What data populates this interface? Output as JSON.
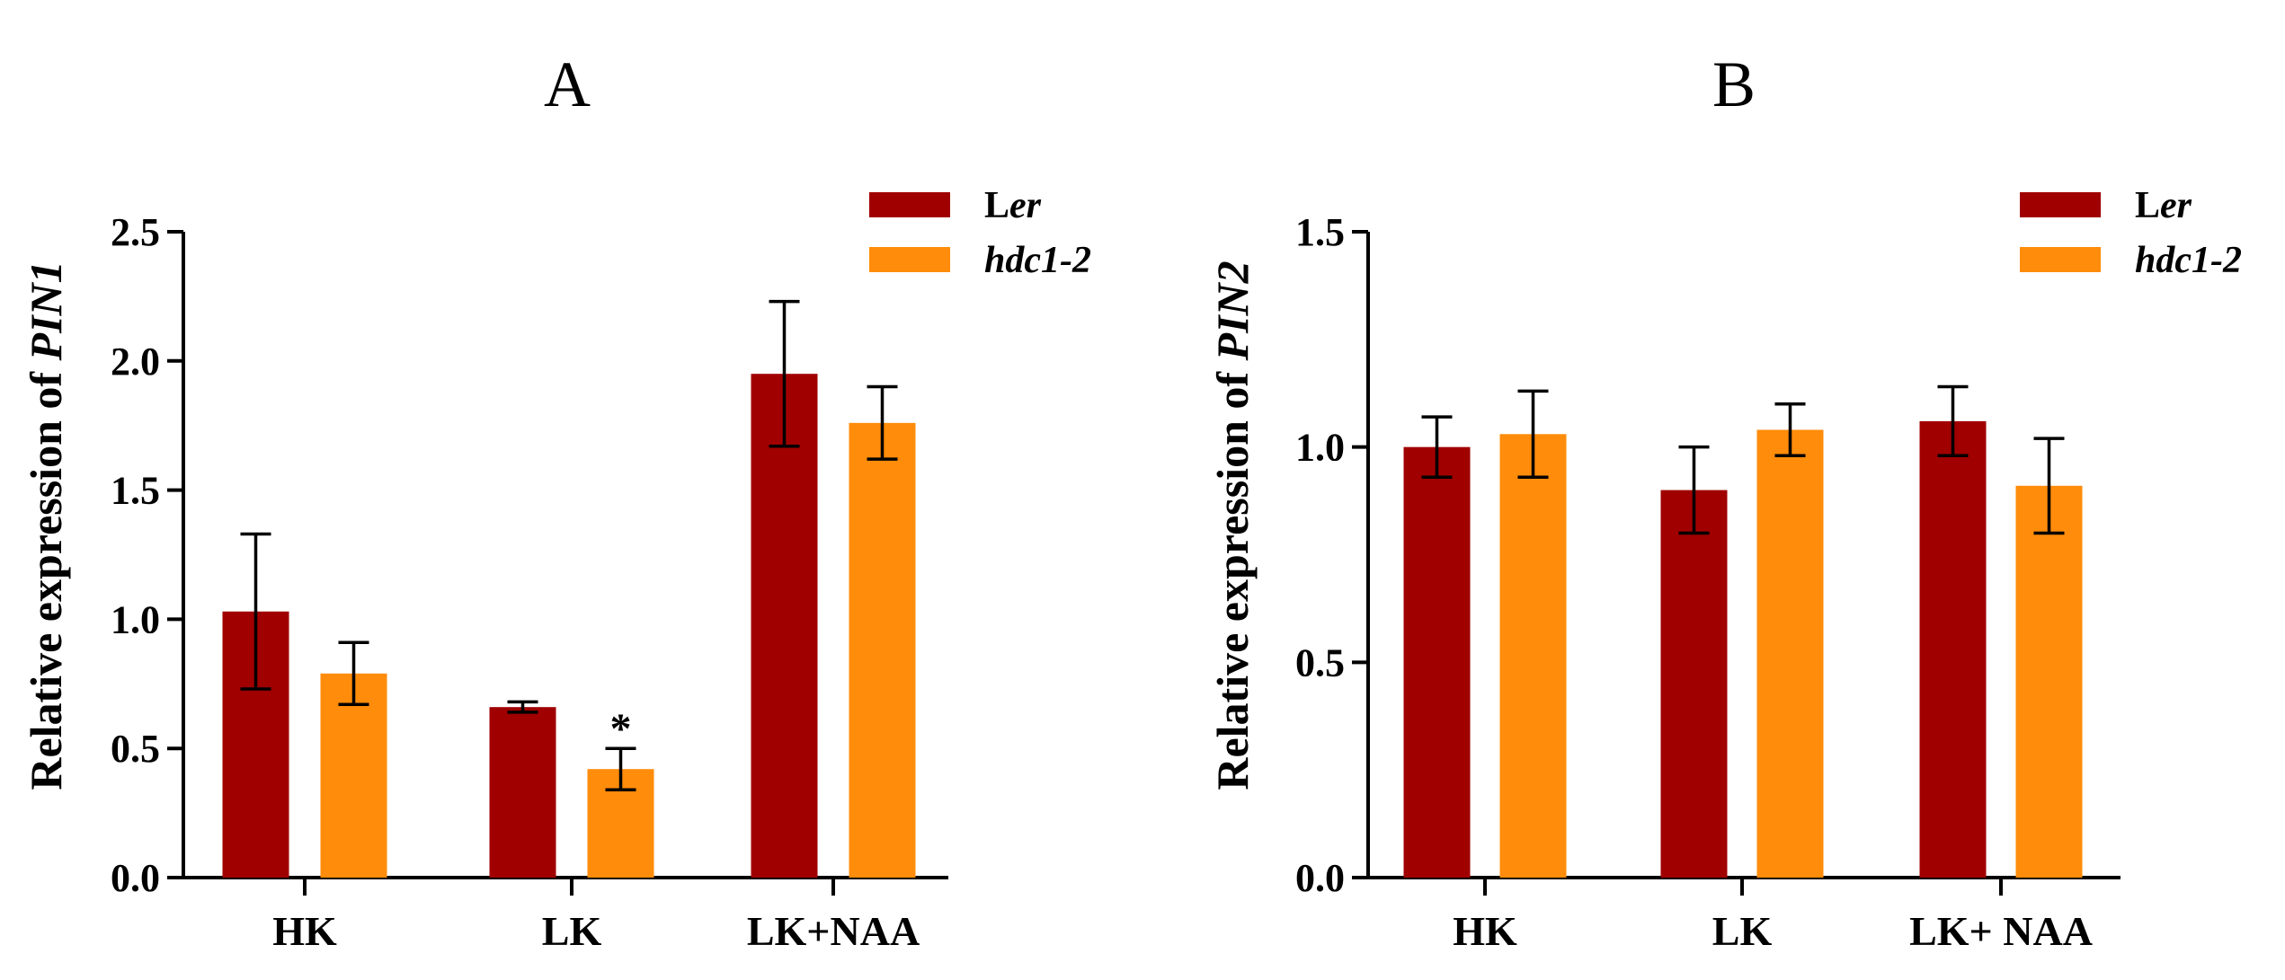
{
  "chart_data": [
    {
      "type": "bar",
      "panel": "A",
      "ylabel_prefix": "Relative expression of",
      "ylabel_gene": "PIN1",
      "categories": [
        "HK",
        "LK",
        "LK+NAA"
      ],
      "ylim": [
        0,
        2.5
      ],
      "yticks": [
        0.0,
        0.5,
        1.0,
        1.5,
        2.0,
        2.5
      ],
      "ytick_labels": [
        "0.0",
        "0.5",
        "1.0",
        "1.5",
        "2.0",
        "2.5"
      ],
      "grid": false,
      "legend_position": "top-right",
      "series": [
        {
          "name": "Ler",
          "name_plain": "L",
          "name_italic": "er",
          "color": "#a00000",
          "values": [
            1.03,
            0.66,
            1.95
          ],
          "error": [
            0.3,
            0.02,
            0.28
          ]
        },
        {
          "name": "hdc1-2",
          "name_plain": "",
          "name_italic": "hdc1-2",
          "color": "#ff8c0a",
          "values": [
            0.79,
            0.42,
            1.76
          ],
          "error": [
            0.12,
            0.08,
            0.14
          ]
        }
      ],
      "annotations": [
        {
          "text": "*",
          "category": "LK",
          "series": "hdc1-2"
        }
      ]
    },
    {
      "type": "bar",
      "panel": "B",
      "ylabel_prefix": "Relative expression of",
      "ylabel_gene": "PIN2",
      "categories": [
        "HK",
        "LK",
        "LK+ NAA"
      ],
      "ylim": [
        0,
        1.5
      ],
      "yticks": [
        0.0,
        0.5,
        1.0,
        1.5
      ],
      "ytick_labels": [
        "0.0",
        "0.5",
        "1.0",
        "1.5"
      ],
      "grid": false,
      "legend_position": "top-right",
      "series": [
        {
          "name": "Ler",
          "name_plain": "L",
          "name_italic": "er",
          "color": "#a00000",
          "values": [
            1.0,
            0.9,
            1.06
          ],
          "error": [
            0.07,
            0.1,
            0.08
          ]
        },
        {
          "name": "hdc1-2",
          "name_plain": "",
          "name_italic": "hdc1-2",
          "color": "#ff8c0a",
          "values": [
            1.03,
            1.04,
            0.91
          ],
          "error": [
            0.1,
            0.06,
            0.11
          ]
        }
      ],
      "annotations": []
    }
  ]
}
